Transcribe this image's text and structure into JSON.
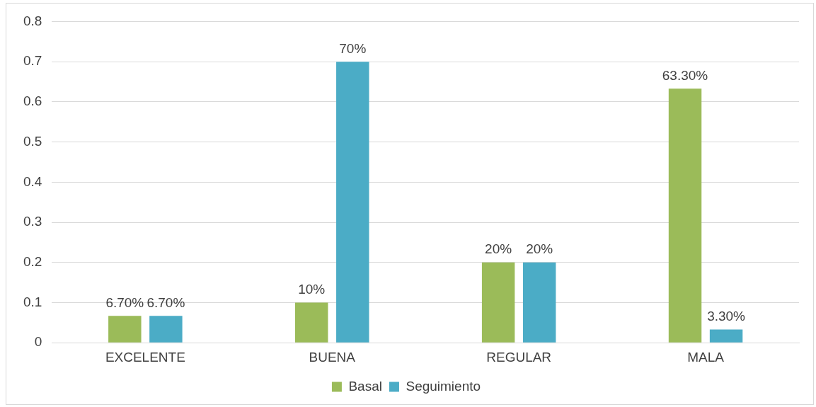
{
  "chart_data": {
    "type": "bar",
    "categories": [
      "EXCELENTE",
      "BUENA",
      "REGULAR",
      "MALA"
    ],
    "series": [
      {
        "name": "Basal",
        "color": "#9bbb59",
        "values": [
          0.067,
          0.1,
          0.2,
          0.633
        ],
        "value_labels": [
          "6.70%",
          "10%",
          "20%",
          "63.30%"
        ]
      },
      {
        "name": "Seguimiento",
        "color": "#4bacc6",
        "values": [
          0.067,
          0.7,
          0.2,
          0.033
        ],
        "value_labels": [
          "6.70%",
          "70%",
          "20%",
          "3.30%"
        ]
      }
    ],
    "ylim": [
      0,
      0.8
    ],
    "yticks": [
      0,
      0.1,
      0.2,
      0.3,
      0.4,
      0.5,
      0.6,
      0.7,
      0.8
    ],
    "grid": "y",
    "legend": "bottom"
  }
}
